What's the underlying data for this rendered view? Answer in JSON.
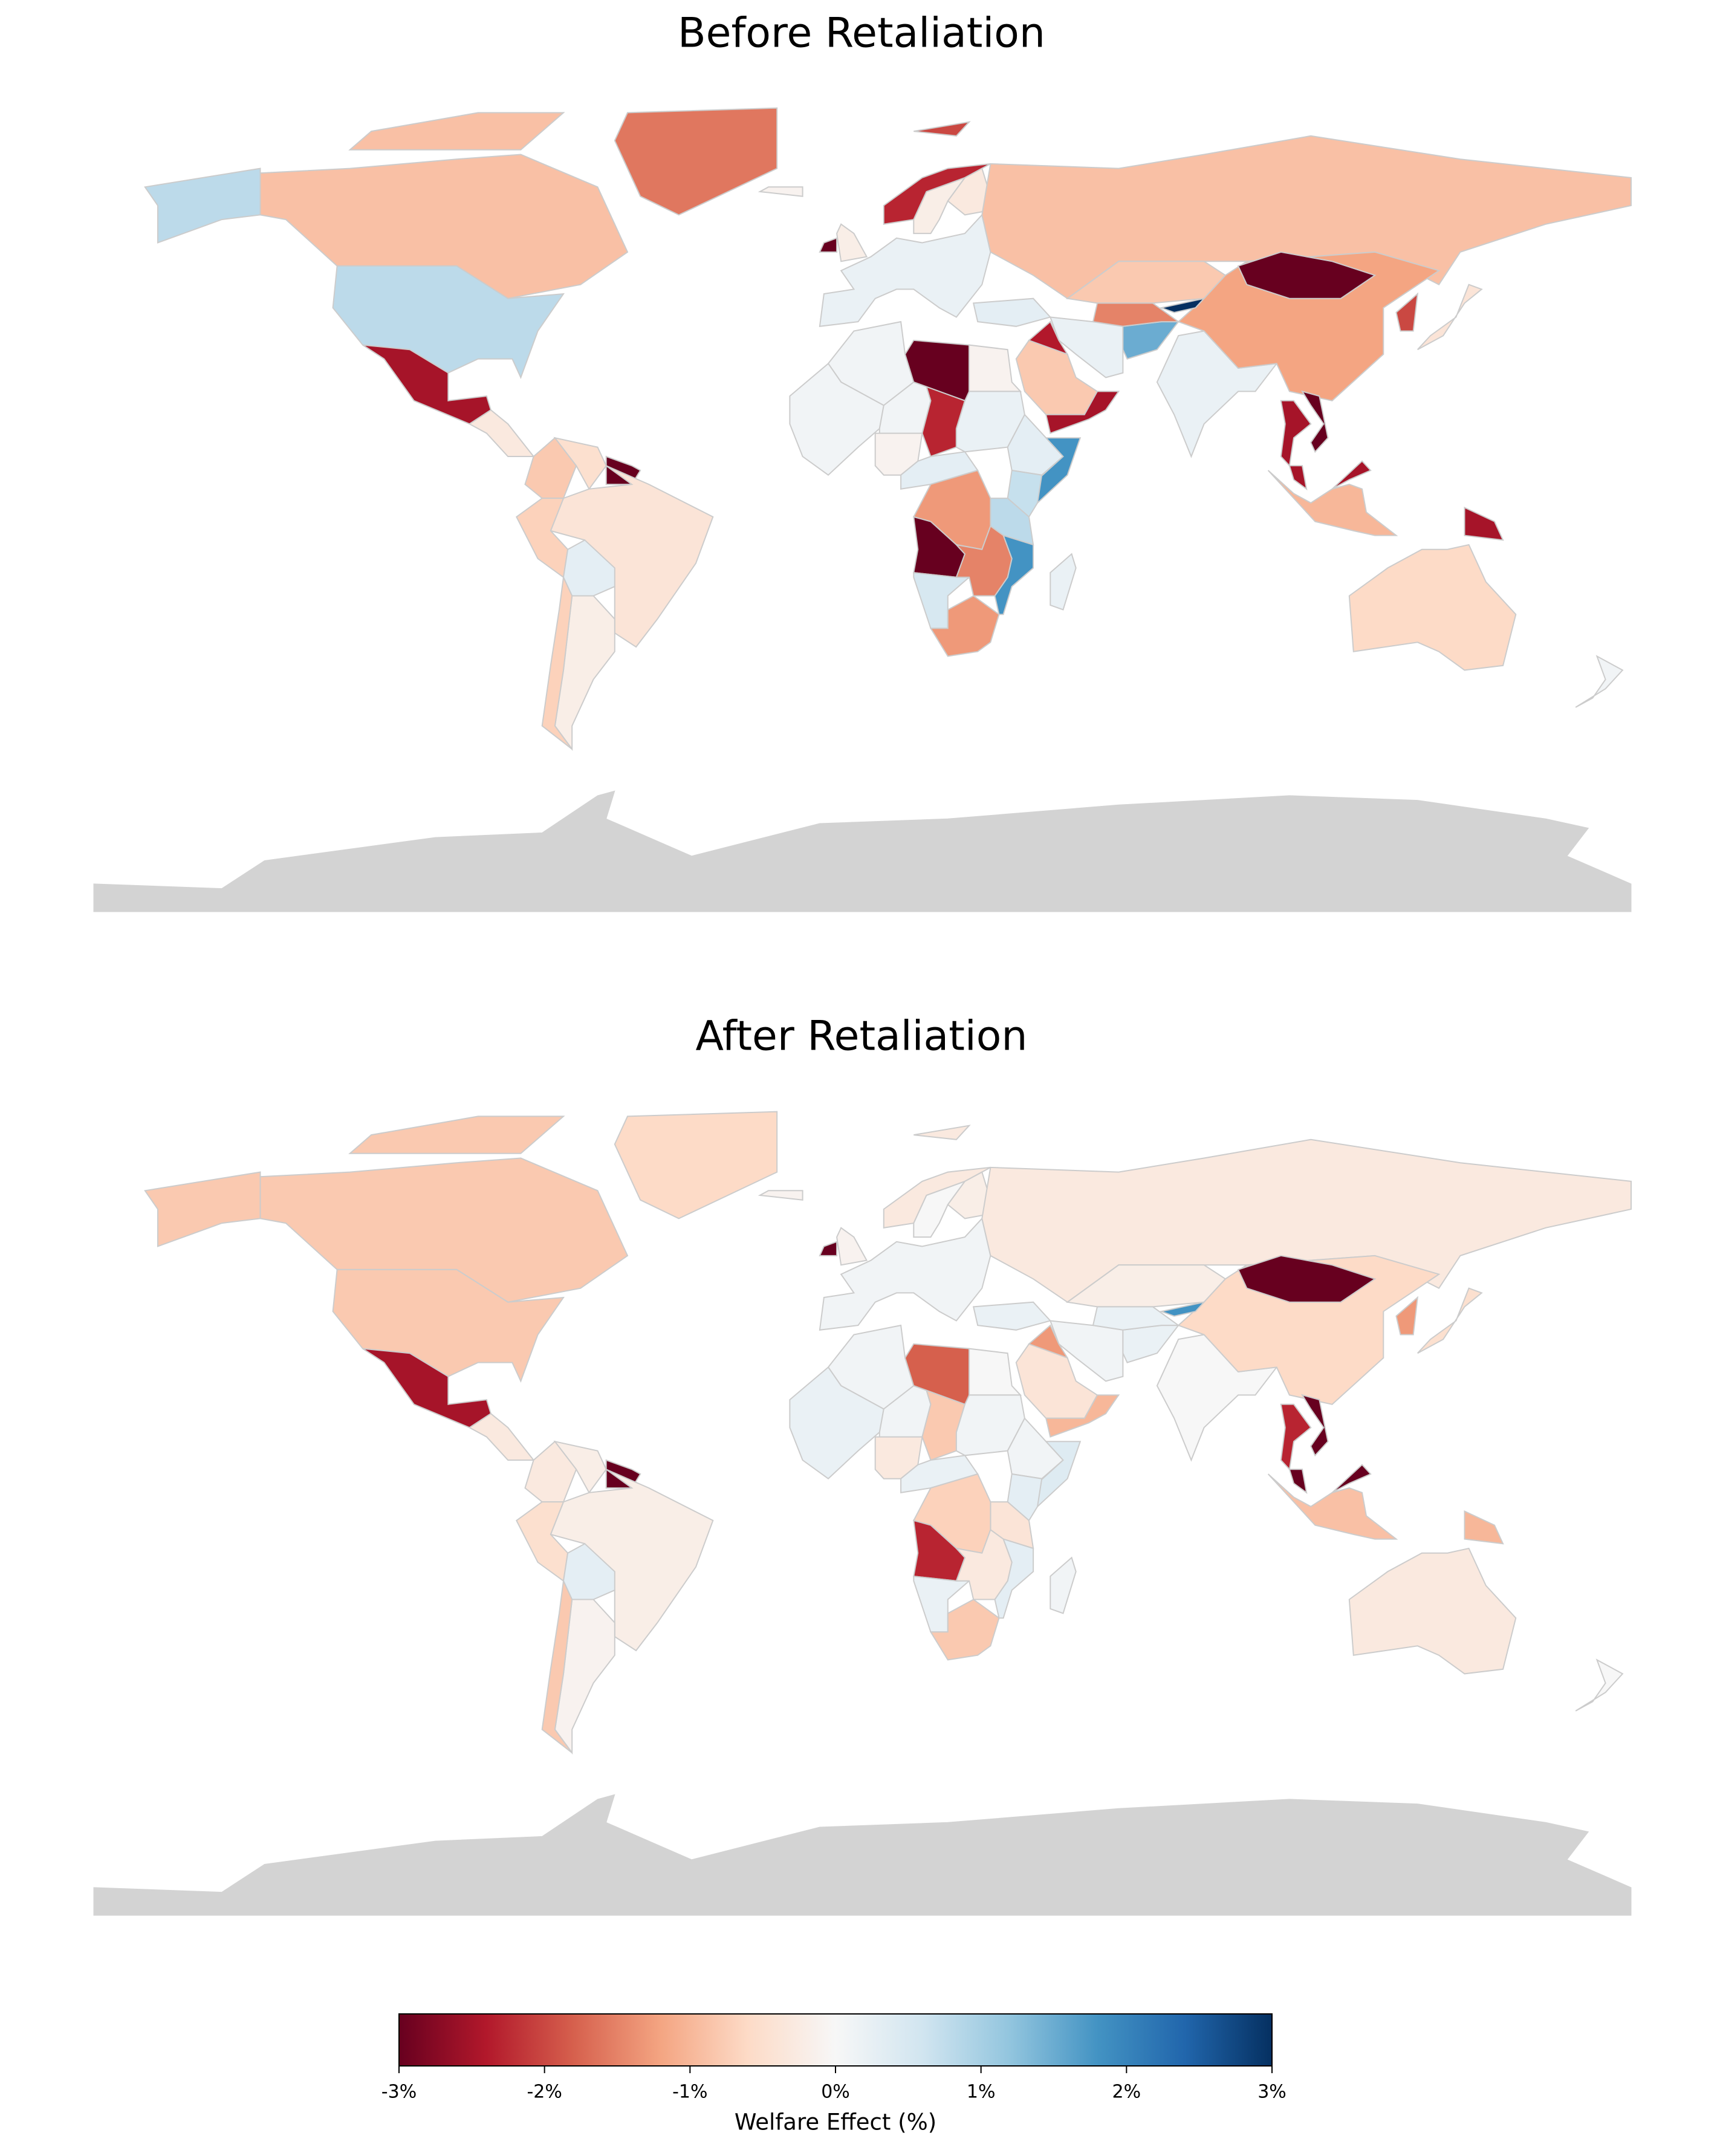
{
  "chart_data": [
    {
      "type": "choropleth",
      "title": "Before Retaliation",
      "values": [
        -0.9,
        0.8,
        -1.6,
        -2.5,
        -0.3,
        -0.8,
        -0.5,
        -3,
        -0.4,
        -0.7,
        0.3,
        -0.2,
        -0.7,
        0.2,
        -2.3,
        -0.2,
        -0.3,
        -0.9,
        0.3,
        -0.8,
        0.2,
        -2.4,
        1.5,
        -0.8,
        -2.5,
        0.2,
        -1.2,
        -3,
        -2,
        -0.4,
        -2.5,
        -3,
        -2.5,
        -1.0,
        -2.5,
        -0.6,
        0.1,
        0.1,
        -3,
        -0.1,
        0.1,
        0.1,
        -2.3,
        0.2,
        -0.1,
        0.3,
        0.3,
        1.8,
        0.7,
        0.8,
        -1.3,
        -3,
        0.5,
        -1.3,
        1.8,
        -1.5,
        0.2,
        -3,
        -0.2,
        -0.1,
        -2,
        -1.5,
        3
      ]
    },
    {
      "type": "choropleth",
      "title": "After Retaliation",
      "values": [
        -0.8,
        -0.8,
        -0.6,
        -2.5,
        -0.3,
        -0.3,
        -0.2,
        -3,
        -0.2,
        -0.5,
        0.3,
        -0.1,
        -0.8,
        0.1,
        -0.3,
        0,
        -0.2,
        -0.3,
        0.2,
        -0.2,
        0.1,
        -1.3,
        0.2,
        -0.4,
        -1.0,
        0,
        -0.6,
        -3,
        -1.3,
        -0.5,
        -2.3,
        -3,
        -3,
        -0.9,
        -1.0,
        -0.3,
        0,
        0.1,
        -1.8,
        0,
        0.2,
        0.1,
        -0.8,
        0.1,
        -0.3,
        0.2,
        0.1,
        0.4,
        0.3,
        -0.4,
        -0.7,
        -2.3,
        0.2,
        -0.8,
        0.3,
        -0.3,
        0.1,
        -3,
        -0.1,
        -0.1,
        -0.3,
        0.2,
        1.8
      ]
    },
    {
      "type": "colorbar",
      "label": "Welfare Effect (%)",
      "xlim": [
        -3,
        3
      ],
      "xticks": [
        {
          "value": -3,
          "label": "-3%"
        },
        {
          "value": -2,
          "label": "-2%"
        },
        {
          "value": -1,
          "label": "-1%"
        },
        {
          "value": 0,
          "label": "0%"
        },
        {
          "value": 1,
          "label": "1%"
        },
        {
          "value": 2,
          "label": "2%"
        },
        {
          "value": 3,
          "label": "3%"
        }
      ],
      "colormap": [
        "#67001f",
        "#b2182b",
        "#d6604d",
        "#f4a582",
        "#fddbc7",
        "#f7f7f7",
        "#d1e5f0",
        "#92c5de",
        "#4393c3",
        "#2166ac",
        "#053061"
      ]
    }
  ]
}
